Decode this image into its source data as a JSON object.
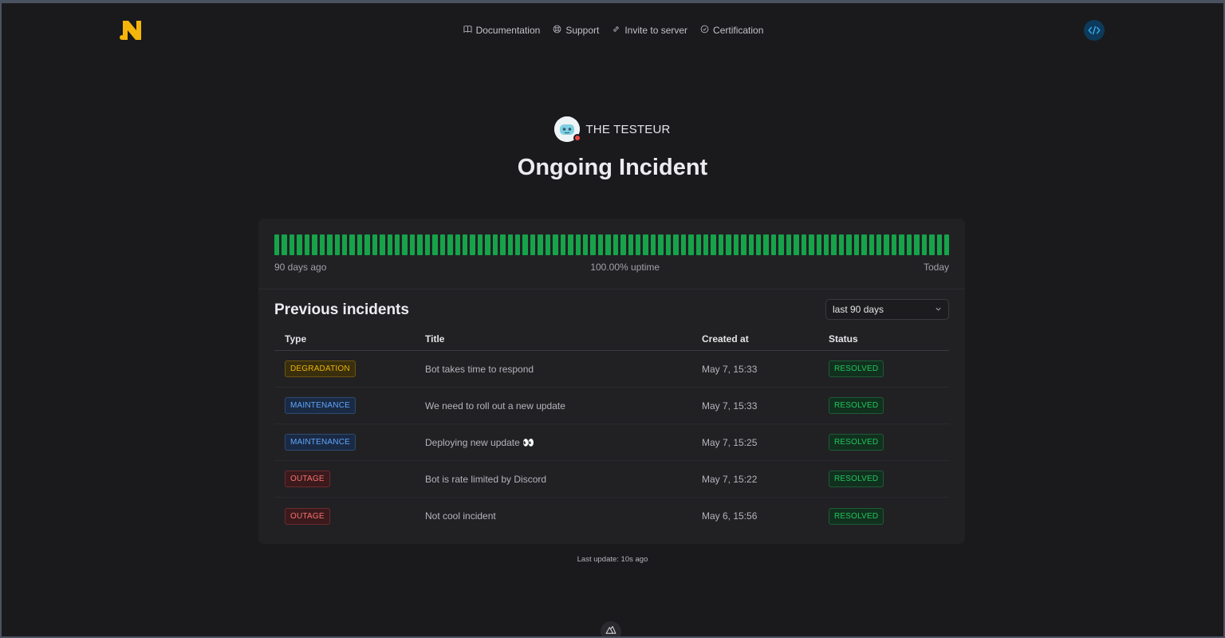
{
  "nav": {
    "items": [
      {
        "label": "Documentation",
        "icon": "book-icon"
      },
      {
        "label": "Support",
        "icon": "lifebuoy-icon"
      },
      {
        "label": "Invite to server",
        "icon": "link-icon"
      },
      {
        "label": "Certification",
        "icon": "check-circle-icon"
      }
    ]
  },
  "bot": {
    "name": "THE TESTEUR",
    "status": "offline"
  },
  "page": {
    "title": "Ongoing Incident"
  },
  "uptime": {
    "start_label": "90 days ago",
    "summary": "100.00% uptime",
    "end_label": "Today",
    "days": 90,
    "bar_color": "#16a34a"
  },
  "incidents": {
    "title": "Previous incidents",
    "range": "last 90 days",
    "columns": {
      "type": "Type",
      "title": "Title",
      "created": "Created at",
      "status": "Status"
    },
    "rows": [
      {
        "type": "DEGRADATION",
        "title": "Bot takes time to respond",
        "created": "May 7, 15:33",
        "status": "RESOLVED"
      },
      {
        "type": "MAINTENANCE",
        "title": "We need to roll out a new update",
        "created": "May 7, 15:33",
        "status": "RESOLVED"
      },
      {
        "type": "MAINTENANCE",
        "title": "Deploying new update 👀",
        "created": "May 7, 15:25",
        "status": "RESOLVED"
      },
      {
        "type": "OUTAGE",
        "title": "Bot is rate limited by Discord",
        "created": "May 7, 15:22",
        "status": "RESOLVED"
      },
      {
        "type": "OUTAGE",
        "title": "Not cool incident",
        "created": "May 6, 15:56",
        "status": "RESOLVED"
      }
    ]
  },
  "footer": {
    "last_update": "Last update: 10s ago"
  },
  "colors": {
    "background": "#1a1a1d",
    "card": "#212124",
    "degradation": "#eab308",
    "maintenance": "#60a5fa",
    "outage": "#f87171",
    "resolved": "#22c55e",
    "brand": "#f5b50a"
  }
}
